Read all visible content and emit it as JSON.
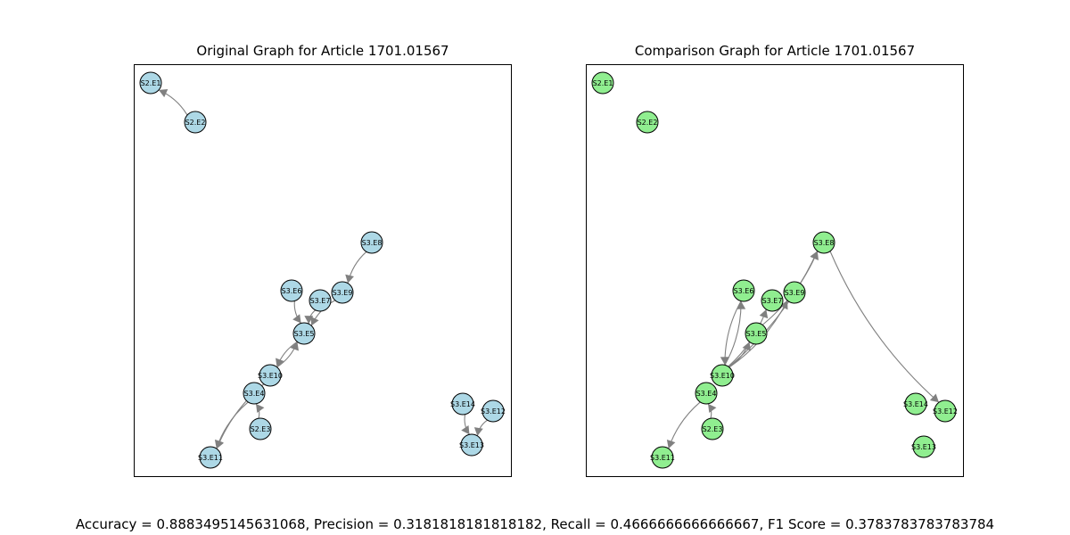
{
  "panels": [
    {
      "title": "Original Graph for Article 1701.01567",
      "node_color": "#add8e6",
      "edges": [
        [
          "S2.E2",
          "S2.E1"
        ],
        [
          "S3.E8",
          "S3.E9"
        ],
        [
          "S3.E6",
          "S3.E5"
        ],
        [
          "S3.E7",
          "S3.E5"
        ],
        [
          "S3.E9",
          "S3.E5"
        ],
        [
          "S3.E5",
          "S3.E10"
        ],
        [
          "S3.E10",
          "S3.E5"
        ],
        [
          "S3.E4",
          "S3.E11"
        ],
        [
          "S3.E10",
          "S3.E11"
        ],
        [
          "S2.E3",
          "S3.E4"
        ],
        [
          "S3.E14",
          "S3.E13"
        ],
        [
          "S3.E12",
          "S3.E13"
        ]
      ]
    },
    {
      "title": "Comparison Graph for Article 1701.01567",
      "node_color": "#90ee90",
      "edges": [
        [
          "S3.E10",
          "S3.E6"
        ],
        [
          "S3.E10",
          "S3.E5"
        ],
        [
          "S3.E10",
          "S3.E7"
        ],
        [
          "S3.E10",
          "S3.E9"
        ],
        [
          "S3.E10",
          "S3.E8"
        ],
        [
          "S3.E5",
          "S3.E8"
        ],
        [
          "S3.E8",
          "S3.E12"
        ],
        [
          "S3.E4",
          "S3.E11"
        ],
        [
          "S3.E6",
          "S3.E10"
        ],
        [
          "S2.E3",
          "S3.E4"
        ]
      ]
    }
  ],
  "nodes": [
    "S2.E1",
    "S2.E2",
    "S2.E3",
    "S3.E4",
    "S3.E5",
    "S3.E6",
    "S3.E7",
    "S3.E8",
    "S3.E9",
    "S3.E10",
    "S3.E11",
    "S3.E12",
    "S3.E13",
    "S3.E14"
  ],
  "metrics_text": "Accuracy = 0.8883495145631068, Precision = 0.3181818181818182, Recall = 0.4666666666666667, F1 Score = 0.3783783783783784"
}
